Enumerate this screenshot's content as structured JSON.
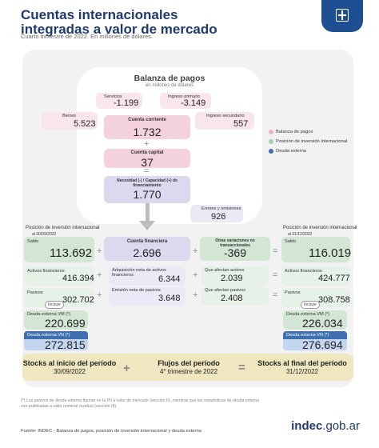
{
  "header": {
    "title_line1": "Cuentas internacionales",
    "title_line2": "integradas a valor de mercado",
    "subtitle": "Cuarto trimestre de 2022. En millones de dólares."
  },
  "bop": {
    "title": "Balanza de pagos",
    "unit": "en millones de dólares",
    "servicios_label": "Servicios",
    "servicios_value": "-1.199",
    "ingreso_primario_label": "Ingreso primario",
    "ingreso_primario_value": "-3.149",
    "bienes_label": "Bienes",
    "bienes_value": "5.523",
    "cuenta_corriente_label": "Cuenta corriente",
    "cuenta_corriente_value": "1.732",
    "ingreso_secundario_label": "Ingreso secundario",
    "ingreso_secundario_value": "557",
    "plus": "+",
    "cuenta_capital_label": "Cuenta capital",
    "cuenta_capital_value": "37",
    "equals": "=",
    "necesidad_label": "Necesidad (-) / Capacidad (+) de financiamiento",
    "necesidad_value": "1.770",
    "errores_label": "Errores y omisiones",
    "errores_value": "926"
  },
  "legend": {
    "items": [
      {
        "label": "Balanza de pagos",
        "color": "#e9b7c6"
      },
      {
        "label": "Posición de inversión internacional",
        "color": "#a9cfac"
      },
      {
        "label": "Deuda externa",
        "color": "#3e6fae"
      }
    ]
  },
  "pii_start": {
    "title": "Posición de inversión internacional",
    "date": "al 30/09/2022",
    "saldo_label": "Saldo",
    "saldo_value": "113.692",
    "activos_label": "Activos financieros",
    "activos_value": "416.394",
    "pasivos_label": "Pasivos",
    "pasivos_value": "302.702",
    "incluye": "Incluye",
    "deuda_vm_label": "Deuda externa VM (*)",
    "deuda_vm_value": "220.699",
    "deuda_vn_label": "Deuda externa VN (*)",
    "deuda_vn_value": "272.815"
  },
  "cuenta_financiera": {
    "label": "Cuenta financiera",
    "value": "2.696",
    "adq_label": "Adquisición neta de activos financieros",
    "adq_value": "6.344",
    "emis_label": "Emisión neta de pasivos",
    "emis_value": "3.648"
  },
  "otras_variaciones": {
    "label": "Otras variaciones no transaccionales",
    "value": "-369",
    "activos_label": "Que afectan activos",
    "activos_value": "2.039",
    "pasivos_label": "Que afectan pasivos",
    "pasivos_value": "2.408"
  },
  "pii_end": {
    "title": "Posición de inversión internacional",
    "date": "al 31/12/2022",
    "saldo_label": "Saldo",
    "saldo_value": "116.019",
    "activos_label": "Activos financieros",
    "activos_value": "424.777",
    "pasivos_label": "Pasivos",
    "pasivos_value": "308.758",
    "incluye": "Incluye",
    "deuda_vm_label": "Deuda externa VM (*)",
    "deuda_vm_value": "226.034",
    "deuda_vn_label": "Deuda externa VN (*)",
    "deuda_vn_value": "276.694"
  },
  "bottom": {
    "stocks_start_title": "Stocks al inicio del período",
    "stocks_start_date": "30/09/2022",
    "flujos_title": "Flujos del período",
    "flujos_sub": "4° trimestre de 2022",
    "stocks_end_title": "Stocks al final del período",
    "stocks_end_date": "31/12/2022",
    "plus": "+",
    "equals": "="
  },
  "footnote": "(*) Los pasivos de deuda externa figuran en la PII a valor de mercado (sección II), mientras que las estadísticas de deuda externa son publicadas a valor nominal residual (sección III).",
  "source": "Fuente: INDEC - Balanza de pagos, posición de inversión internacional y deuda externa",
  "logo": {
    "bold": "indec",
    "rest": ".gob.ar"
  }
}
